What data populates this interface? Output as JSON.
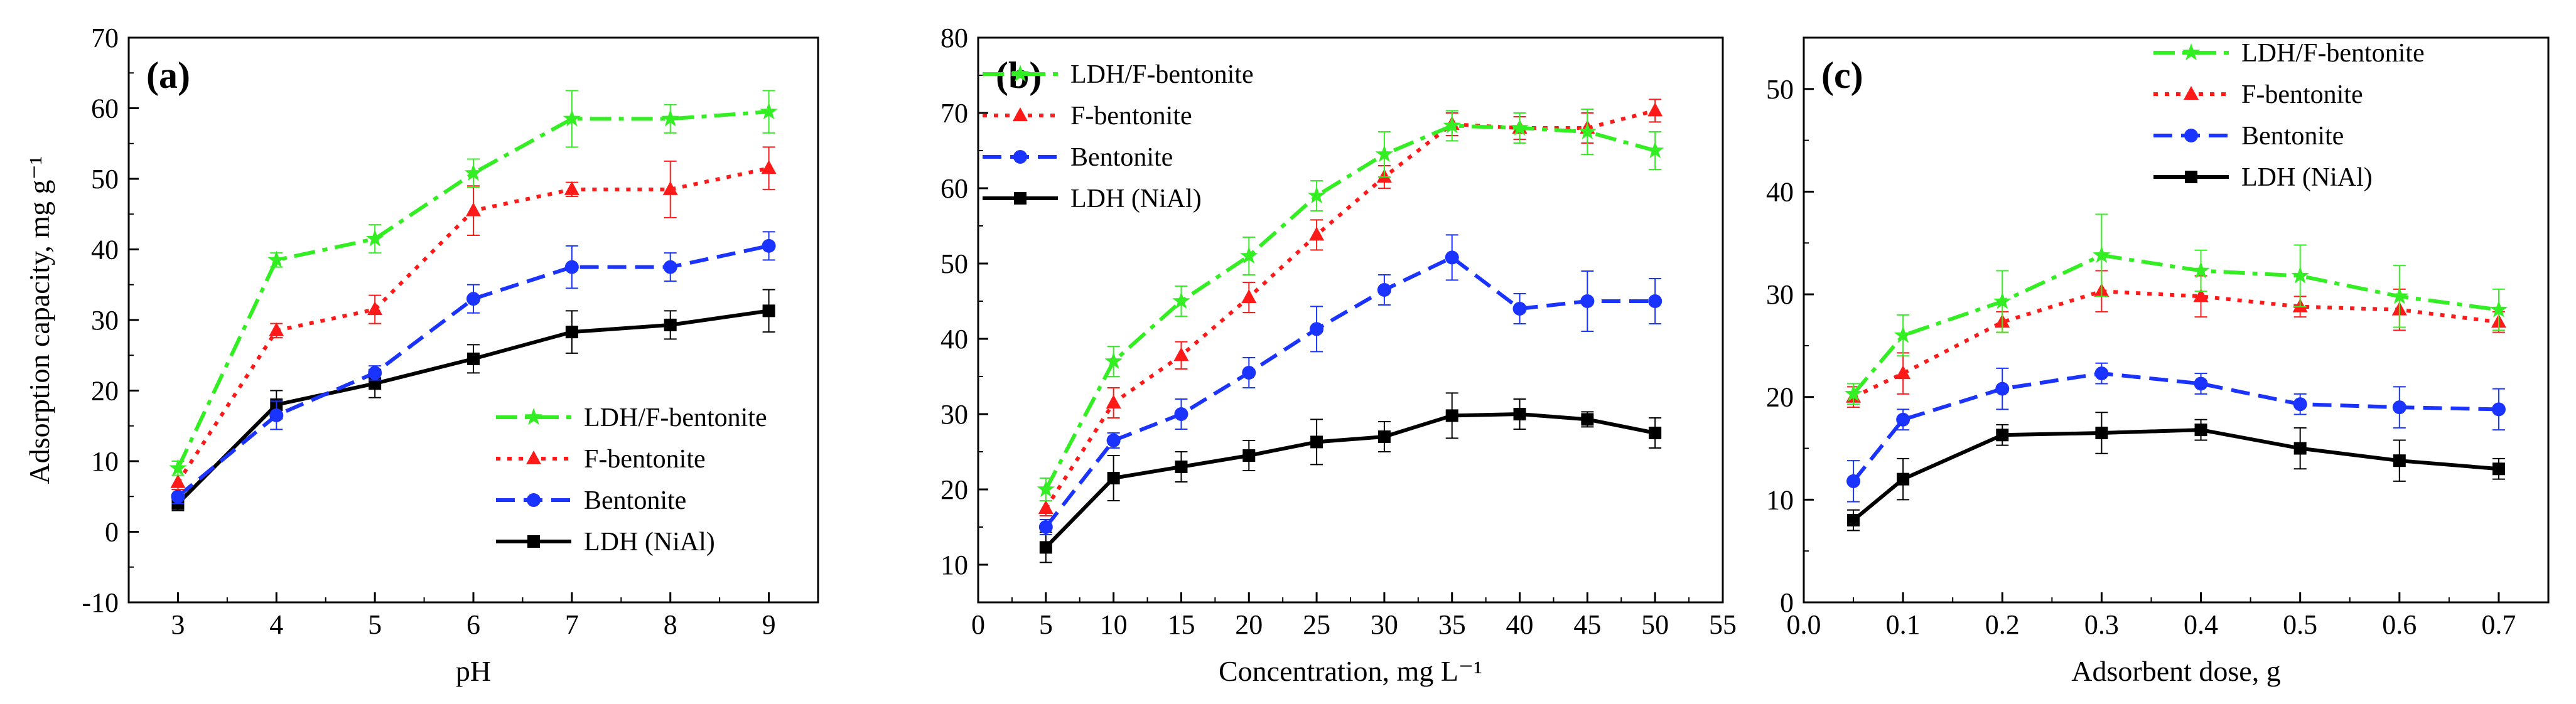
{
  "figure": {
    "title": "",
    "colors": {
      "ldh_f_bentonite": "#33ee22",
      "f_bentonite": "#ff1a1a",
      "bentonite": "#1a33ff",
      "ldh_nial": "#000000"
    }
  },
  "chart_data": [
    {
      "type": "line",
      "panel_label": "(a)",
      "title": "",
      "xlabel": "pH",
      "ylabel": "Adsorption capacity, mg g⁻¹",
      "xlim": [
        2.5,
        9.5
      ],
      "ylim": [
        -10,
        70
      ],
      "xticks": [
        3,
        4,
        5,
        6,
        7,
        8,
        9
      ],
      "xtick_labels": [
        "3",
        "4",
        "5",
        "6",
        "7",
        "8",
        "9"
      ],
      "yticks": [
        -10,
        0,
        10,
        20,
        30,
        40,
        50,
        60,
        70
      ],
      "ytick_labels": [
        "-10",
        "0",
        "10",
        "20",
        "30",
        "40",
        "50",
        "60",
        "70"
      ],
      "grid": false,
      "legend_position": "bottom-right",
      "x": [
        3,
        4,
        5,
        6,
        7,
        8,
        9
      ],
      "series": [
        {
          "name": "LDH/F-bentonite",
          "values": [
            9.0,
            38.5,
            41.5,
            50.8,
            58.5,
            58.5,
            59.5
          ],
          "errors": [
            1.0,
            1.0,
            2.0,
            2.0,
            4.0,
            2.0,
            3.0
          ]
        },
        {
          "name": "F-bentonite",
          "values": [
            7.0,
            28.5,
            31.5,
            45.5,
            48.5,
            48.5,
            51.5
          ],
          "errors": [
            1.0,
            1.0,
            2.0,
            3.5,
            1.0,
            4.0,
            3.0
          ]
        },
        {
          "name": "Bentonite",
          "values": [
            5.0,
            16.5,
            22.5,
            33.0,
            37.5,
            37.5,
            40.5
          ],
          "errors": [
            1.0,
            2.0,
            1.0,
            2.0,
            3.0,
            2.0,
            2.0
          ]
        },
        {
          "name": "LDH (NiAl)",
          "values": [
            4.0,
            18.0,
            21.0,
            24.5,
            28.3,
            29.3,
            31.3
          ],
          "errors": [
            1.0,
            2.0,
            2.0,
            2.0,
            3.0,
            2.0,
            3.0
          ]
        }
      ]
    },
    {
      "type": "line",
      "panel_label": "(b)",
      "title": "",
      "xlabel": "Concentration, mg L⁻¹",
      "ylabel": "",
      "xlim": [
        0,
        55
      ],
      "ylim": [
        5,
        80
      ],
      "xticks": [
        0,
        5,
        10,
        15,
        20,
        25,
        30,
        35,
        40,
        45,
        50,
        55
      ],
      "xtick_labels": [
        "0",
        "5",
        "10",
        "15",
        "20",
        "25",
        "30",
        "35",
        "40",
        "45",
        "50",
        "55"
      ],
      "yticks": [
        10,
        20,
        30,
        40,
        50,
        60,
        70,
        80
      ],
      "ytick_labels": [
        "10",
        "20",
        "30",
        "40",
        "50",
        "60",
        "70",
        "80"
      ],
      "grid": false,
      "legend_position": "top-left",
      "x": [
        5,
        10,
        15,
        20,
        25,
        30,
        35,
        40,
        45,
        50
      ],
      "series": [
        {
          "name": "LDH/F-bentonite",
          "values": [
            20.0,
            37.0,
            45.0,
            51.0,
            59.0,
            64.5,
            68.3,
            68.0,
            67.5,
            65.0
          ],
          "errors": [
            1.5,
            2.0,
            2.0,
            2.5,
            2.0,
            3.0,
            2.0,
            2.0,
            3.0,
            2.5
          ]
        },
        {
          "name": "F-bentonite",
          "values": [
            17.5,
            31.5,
            37.8,
            45.5,
            53.8,
            61.5,
            68.5,
            68.0,
            68.0,
            70.3
          ],
          "errors": [
            1.0,
            2.0,
            1.8,
            2.0,
            2.0,
            1.5,
            1.5,
            1.5,
            2.0,
            1.5
          ]
        },
        {
          "name": "Bentonite",
          "values": [
            15.0,
            26.5,
            30.0,
            35.5,
            41.3,
            46.5,
            50.8,
            44.0,
            45.0,
            45.0
          ],
          "errors": [
            1.0,
            1.0,
            2.0,
            2.0,
            3.0,
            2.0,
            3.0,
            2.0,
            4.0,
            3.0
          ]
        },
        {
          "name": "LDH (NiAl)",
          "values": [
            12.3,
            21.5,
            23.0,
            24.5,
            26.3,
            27.0,
            29.8,
            30.0,
            29.3,
            27.5
          ],
          "errors": [
            2.0,
            3.0,
            2.0,
            2.0,
            3.0,
            2.0,
            3.0,
            2.0,
            1.0,
            2.0
          ]
        }
      ]
    },
    {
      "type": "line",
      "panel_label": "(c)",
      "title": "",
      "xlabel": "Adsorbent dose, g",
      "ylabel": "",
      "xlim": [
        0,
        0.75
      ],
      "ylim": [
        0,
        55
      ],
      "xticks": [
        0,
        0.1,
        0.2,
        0.3,
        0.4,
        0.5,
        0.6,
        0.7
      ],
      "xtick_labels": [
        "0.0",
        "0.1",
        "0.2",
        "0.3",
        "0.4",
        "0.5",
        "0.6",
        "0.7"
      ],
      "yticks": [
        0,
        10,
        20,
        30,
        40,
        50
      ],
      "ytick_labels": [
        "0",
        "10",
        "20",
        "30",
        "40",
        "50"
      ],
      "grid": false,
      "legend_position": "top-right",
      "x": [
        0.05,
        0.1,
        0.2,
        0.3,
        0.4,
        0.5,
        0.6,
        0.7
      ],
      "series": [
        {
          "name": "LDH/F-bentonite",
          "values": [
            20.3,
            26.0,
            29.3,
            33.8,
            32.3,
            31.8,
            29.8,
            28.5
          ],
          "errors": [
            1.0,
            2.0,
            3.0,
            4.0,
            2.0,
            3.0,
            3.0,
            2.0
          ]
        },
        {
          "name": "F-bentonite",
          "values": [
            20.0,
            22.3,
            27.3,
            30.3,
            29.8,
            28.8,
            28.5,
            27.3
          ],
          "errors": [
            1.0,
            2.0,
            1.0,
            2.0,
            2.0,
            1.0,
            2.0,
            1.0
          ]
        },
        {
          "name": "Bentonite",
          "values": [
            11.8,
            17.8,
            20.8,
            22.3,
            21.3,
            19.3,
            19.0,
            18.8
          ],
          "errors": [
            2.0,
            1.0,
            2.0,
            1.0,
            1.0,
            1.0,
            2.0,
            2.0
          ]
        },
        {
          "name": "LDH (NiAl)",
          "values": [
            8.0,
            12.0,
            16.3,
            16.5,
            16.8,
            15.0,
            13.8,
            13.0
          ],
          "errors": [
            1.0,
            2.0,
            1.0,
            2.0,
            1.0,
            2.0,
            2.0,
            1.0
          ]
        }
      ]
    }
  ]
}
